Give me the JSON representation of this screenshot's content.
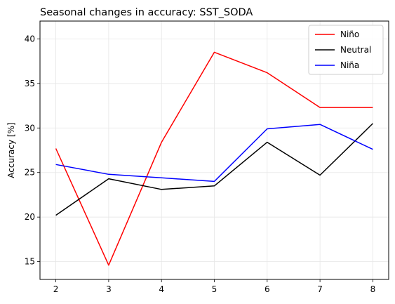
{
  "chart_data": {
    "type": "line",
    "title": "Seasonal changes in accuracy: SST_SODA",
    "xlabel": "",
    "ylabel": "Accuracy [%]",
    "x": [
      2,
      3,
      4,
      5,
      6,
      7,
      8
    ],
    "xlim": [
      1.7,
      8.3
    ],
    "ylim": [
      13,
      42
    ],
    "xticks": [
      2,
      3,
      4,
      5,
      6,
      7,
      8
    ],
    "yticks": [
      15,
      20,
      25,
      30,
      35,
      40
    ],
    "grid": true,
    "legend_position": "top-right",
    "series": [
      {
        "name": "Niño",
        "color": "#ff0000",
        "values": [
          27.7,
          14.6,
          28.4,
          38.5,
          36.2,
          32.3,
          32.3
        ]
      },
      {
        "name": "Neutral",
        "color": "#000000",
        "values": [
          20.2,
          24.3,
          23.1,
          23.5,
          28.4,
          24.7,
          30.5
        ]
      },
      {
        "name": "Niña",
        "color": "#0000ff",
        "values": [
          25.9,
          24.8,
          24.4,
          24.0,
          29.9,
          30.4,
          27.6
        ]
      }
    ]
  }
}
